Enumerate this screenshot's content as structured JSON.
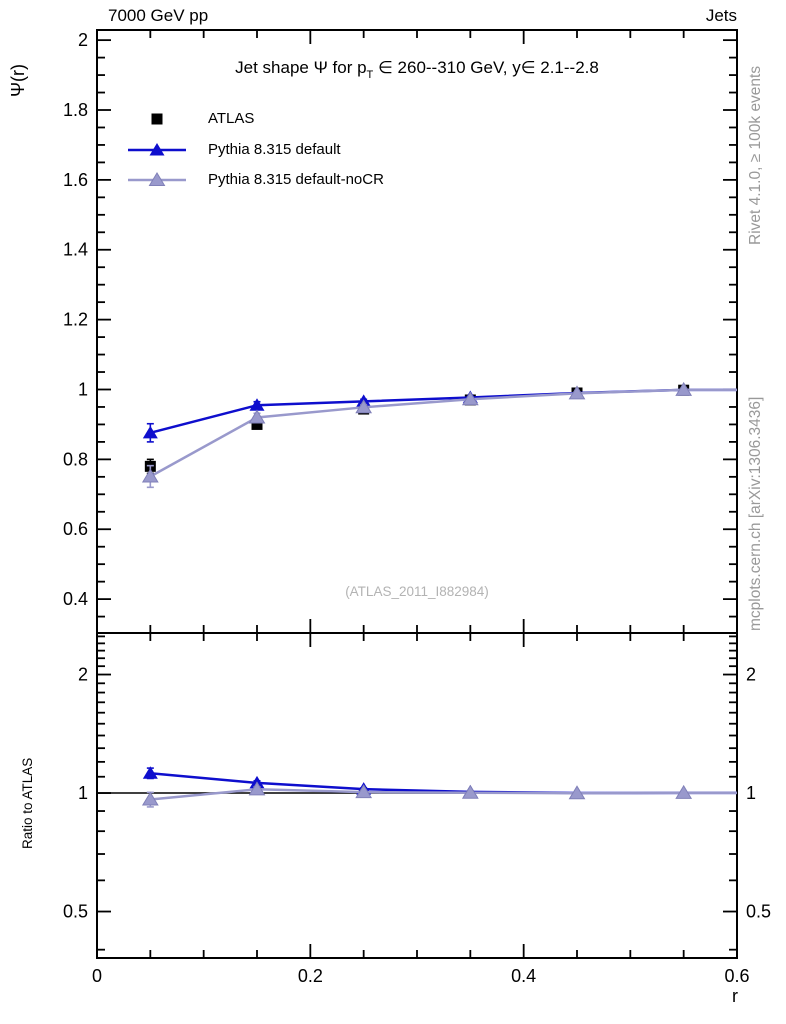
{
  "header": {
    "left": "7000 GeV pp",
    "right": "Jets"
  },
  "title": {
    "text_pre": "Jet shape Ψ for p",
    "sub": "T",
    "text_post": " ∈ 260--310 GeV, y∈ 2.1--2.8"
  },
  "watermark": "(ATLAS_2011_I882984)",
  "side_text_top": "Rivet 4.1.0, ≥ 100k events",
  "side_text_bottom": "mcplots.cern.ch [arXiv:1306.3436]",
  "axis_labels": {
    "x": "r",
    "y_main": "Ψ(r)",
    "y_ratio": "Ratio to ATLAS"
  },
  "colors": {
    "data": "#000000",
    "pythia_default": "#0e0ecd",
    "pythia_nocr": "#9999cc",
    "annotation_gray": "#999999",
    "watermark_gray": "#b3b3b3"
  },
  "legend": [
    {
      "label": "ATLAS",
      "marker": "square",
      "color": "#000000",
      "line": false
    },
    {
      "label": "Pythia 8.315 default",
      "marker": "triangle",
      "color": "#0e0ecd",
      "line": true
    },
    {
      "label": "Pythia 8.315 default-noCR",
      "marker": "triangle",
      "color": "#9999cc",
      "line": true
    }
  ],
  "chart_data": [
    {
      "type": "scatter",
      "panel": "main",
      "title": "Jet shape Ψ for pT ∈ 260--310 GeV, y∈ 2.1--2.8",
      "xlabel": "r",
      "ylabel": "Ψ(r)",
      "xlim": [
        0,
        0.6
      ],
      "ylim": [
        0.303,
        2.029
      ],
      "yscale": "linear",
      "xticks": {
        "major": [
          0,
          0.2,
          0.4,
          0.6
        ],
        "labels": [
          "0",
          "0.2",
          "0.4",
          "0.6"
        ],
        "minor_step": 0.05
      },
      "yticks": {
        "major": [
          0.4,
          0.6,
          0.8,
          1,
          1.2,
          1.4,
          1.6,
          1.8,
          2
        ],
        "labels": [
          "0.4",
          "0.6",
          "0.8",
          "1",
          "1.2",
          "1.4",
          "1.6",
          "1.8",
          "2"
        ],
        "minor_step": 0.05
      },
      "x": [
        0.05,
        0.15,
        0.25,
        0.35,
        0.45,
        0.55
      ],
      "series": [
        {
          "name": "ATLAS",
          "marker": "square",
          "color": "#000000",
          "line": false,
          "values": [
            0.78,
            0.9,
            0.944,
            0.97,
            0.99,
            0.998
          ],
          "errors": [
            0.02,
            0.012,
            0.008,
            0.005,
            0.004,
            0.003
          ]
        },
        {
          "name": "Pythia 8.315 default",
          "marker": "triangle",
          "color": "#0e0ecd",
          "line": true,
          "values": [
            0.876,
            0.955,
            0.966,
            0.977,
            0.99,
            0.999
          ],
          "errors": [
            0.026,
            0.01,
            0.006,
            0.004,
            0.003,
            0.002
          ]
        },
        {
          "name": "Pythia 8.315 default-noCR",
          "marker": "triangle",
          "color": "#9999cc",
          "line": true,
          "values": [
            0.751,
            0.92,
            0.949,
            0.972,
            0.989,
            0.999
          ],
          "errors": [
            0.031,
            0.012,
            0.007,
            0.005,
            0.003,
            0.002
          ]
        }
      ]
    },
    {
      "type": "scatter",
      "panel": "ratio",
      "ylabel": "Ratio to ATLAS",
      "xlim": [
        0,
        0.6
      ],
      "ylim": [
        0.381,
        2.55
      ],
      "yscale": "log",
      "refline": 1,
      "xticks": {
        "major": [
          0,
          0.2,
          0.4,
          0.6
        ],
        "labels": [
          "0",
          "0.2",
          "0.4",
          "0.6"
        ],
        "minor_step": 0.05
      },
      "yticks": {
        "major": [
          0.5,
          1,
          2
        ],
        "labels": [
          "0.5",
          "1",
          "2"
        ],
        "minor": [
          0.4,
          0.6,
          0.7,
          0.8,
          0.9,
          1.1,
          1.2,
          1.3,
          1.4,
          1.5,
          1.6,
          1.7,
          1.8,
          1.9,
          2.1,
          2.2,
          2.3,
          2.4,
          2.5
        ]
      },
      "x": [
        0.05,
        0.15,
        0.25,
        0.35,
        0.45,
        0.55
      ],
      "series": [
        {
          "name": "Pythia 8.315 default",
          "marker": "triangle",
          "color": "#0e0ecd",
          "line": true,
          "values": [
            1.123,
            1.061,
            1.023,
            1.007,
            1.0,
            1.001
          ],
          "errors": [
            0.034,
            0.013,
            0.008,
            0.005,
            0.004,
            0.003
          ]
        },
        {
          "name": "Pythia 8.315 default-noCR",
          "marker": "triangle",
          "color": "#9999cc",
          "line": true,
          "values": [
            0.963,
            1.022,
            1.005,
            1.002,
            0.999,
            1.001
          ],
          "errors": [
            0.041,
            0.015,
            0.009,
            0.006,
            0.004,
            0.003
          ]
        }
      ]
    }
  ]
}
